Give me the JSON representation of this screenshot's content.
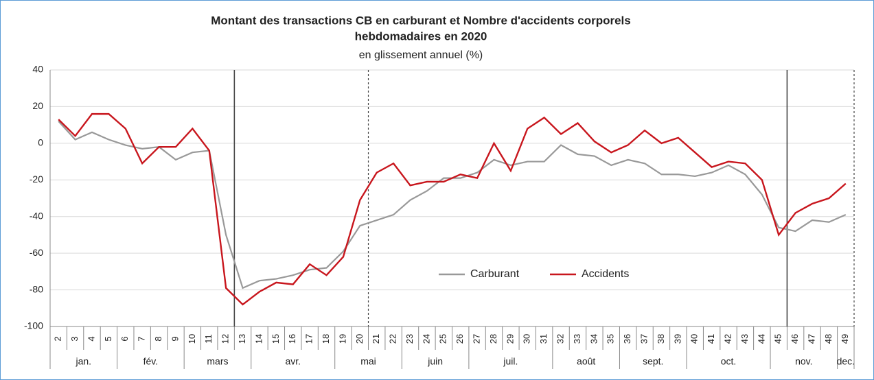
{
  "chart_data": {
    "type": "line",
    "title": "Montant des transactions CB en carburant et Nombre d'accidents corporels",
    "title_line2": "hebdomadaires en 2020",
    "subtitle": "en glissement annuel (%)",
    "categories": [
      "2",
      "3",
      "4",
      "5",
      "6",
      "7",
      "8",
      "9",
      "10",
      "11",
      "12",
      "13",
      "14",
      "15",
      "16",
      "17",
      "18",
      "19",
      "20",
      "21",
      "22",
      "23",
      "24",
      "25",
      "26",
      "27",
      "28",
      "29",
      "30",
      "31",
      "32",
      "33",
      "34",
      "35",
      "36",
      "37",
      "38",
      "39",
      "40",
      "41",
      "42",
      "43",
      "44",
      "45",
      "46",
      "47",
      "48",
      "49"
    ],
    "months": [
      "jan.",
      "fév.",
      "mars",
      "avr.",
      "mai",
      "juin",
      "juil.",
      "août",
      "sept.",
      "oct.",
      "nov.",
      "dec."
    ],
    "series": [
      {
        "name": "Carburant",
        "color": "#999999",
        "values": [
          12,
          2,
          6,
          2,
          -1,
          -3,
          -2,
          -9,
          -5,
          -4,
          -50,
          -79,
          -75,
          -74,
          -72,
          -69,
          -68,
          -59,
          -45,
          -42,
          -39,
          -31,
          -26,
          -19,
          -19,
          -16,
          -9,
          -12,
          -10,
          -10,
          -1,
          -6,
          -7,
          -12,
          -9,
          -11,
          -17,
          -17,
          -18,
          -16,
          -12,
          -17,
          -28,
          -46,
          -48,
          -42,
          -43,
          -39
        ]
      },
      {
        "name": "Accidents",
        "color": "#c8161d",
        "values": [
          13,
          4,
          16,
          16,
          8,
          -11,
          -2,
          -2,
          8,
          -4,
          -79,
          -88,
          -81,
          -76,
          -77,
          -66,
          -72,
          -62,
          -31,
          -16,
          -11,
          -23,
          -21,
          -21,
          -17,
          -19,
          0,
          -15,
          8,
          14,
          5,
          11,
          1,
          -5,
          -1,
          7,
          0,
          3,
          -5,
          -13,
          -10,
          -11,
          -20,
          -50,
          -38,
          -33,
          -30,
          -22
        ]
      }
    ],
    "ylim": [
      -100,
      40
    ],
    "yticks": [
      40,
      20,
      0,
      -20,
      -40,
      -60,
      -80,
      -100
    ],
    "grid": true,
    "legend": "center"
  }
}
